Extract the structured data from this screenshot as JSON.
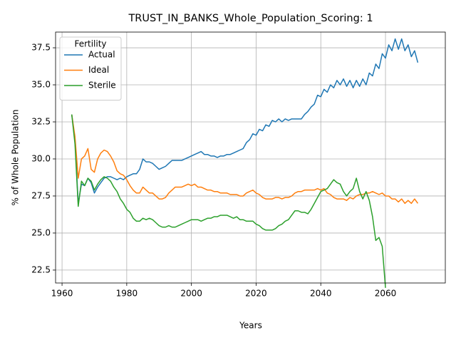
{
  "chart_data": {
    "type": "line",
    "title": "TRUST_IN_BANKS_Whole_Population_Scoring: 1",
    "x_label": "Years",
    "y_label": "% of Whole Population",
    "x": [
      1963,
      1964,
      1965,
      1966,
      1967,
      1968,
      1969,
      1970,
      1971,
      1972,
      1973,
      1974,
      1975,
      1976,
      1977,
      1978,
      1979,
      1980,
      1981,
      1982,
      1983,
      1984,
      1985,
      1986,
      1987,
      1988,
      1989,
      1990,
      1991,
      1992,
      1993,
      1994,
      1995,
      1996,
      1997,
      1998,
      1999,
      2000,
      2001,
      2002,
      2003,
      2004,
      2005,
      2006,
      2007,
      2008,
      2009,
      2010,
      2011,
      2012,
      2013,
      2014,
      2015,
      2016,
      2017,
      2018,
      2019,
      2020,
      2021,
      2022,
      2023,
      2024,
      2025,
      2026,
      2027,
      2028,
      2029,
      2030,
      2031,
      2032,
      2033,
      2034,
      2035,
      2036,
      2037,
      2038,
      2039,
      2040,
      2041,
      2042,
      2043,
      2044,
      2045,
      2046,
      2047,
      2048,
      2049,
      2050,
      2051,
      2052,
      2053,
      2054,
      2055,
      2056,
      2057,
      2058,
      2059,
      2060,
      2061,
      2062,
      2063,
      2064,
      2065,
      2066,
      2067,
      2068,
      2069,
      2070
    ],
    "series": [
      {
        "name": "Actual",
        "color": "#1f77b4",
        "values": [
          33.0,
          31.3,
          27.0,
          28.3,
          28.2,
          28.7,
          28.4,
          27.7,
          28.1,
          28.4,
          28.7,
          28.8,
          28.8,
          28.7,
          28.6,
          28.7,
          28.6,
          28.8,
          28.9,
          29.0,
          29.0,
          29.3,
          30.0,
          29.8,
          29.8,
          29.7,
          29.5,
          29.3,
          29.4,
          29.5,
          29.7,
          29.9,
          29.9,
          29.9,
          29.9,
          30.0,
          30.1,
          30.2,
          30.3,
          30.4,
          30.5,
          30.3,
          30.3,
          30.2,
          30.2,
          30.1,
          30.2,
          30.2,
          30.3,
          30.3,
          30.4,
          30.5,
          30.6,
          30.7,
          31.1,
          31.3,
          31.7,
          31.6,
          32.0,
          31.9,
          32.3,
          32.2,
          32.6,
          32.5,
          32.7,
          32.5,
          32.7,
          32.6,
          32.7,
          32.7,
          32.7,
          32.7,
          33.0,
          33.2,
          33.5,
          33.7,
          34.3,
          34.2,
          34.7,
          34.5,
          35.0,
          34.8,
          35.3,
          35.0,
          35.4,
          34.9,
          35.3,
          34.8,
          35.3,
          34.9,
          35.4,
          35.0,
          35.8,
          35.6,
          36.4,
          36.1,
          37.1,
          36.8,
          37.7,
          37.3,
          38.1,
          37.4,
          38.1,
          37.3,
          37.7,
          36.9,
          37.3,
          36.5
        ]
      },
      {
        "name": "Ideal",
        "color": "#ff7f0e",
        "values": [
          33.0,
          31.5,
          28.7,
          30.0,
          30.2,
          30.7,
          29.3,
          29.1,
          30.0,
          30.4,
          30.6,
          30.5,
          30.2,
          29.8,
          29.2,
          29.0,
          28.9,
          28.6,
          28.2,
          27.9,
          27.7,
          27.7,
          28.1,
          27.9,
          27.7,
          27.7,
          27.5,
          27.3,
          27.3,
          27.4,
          27.7,
          27.9,
          28.1,
          28.1,
          28.1,
          28.2,
          28.3,
          28.2,
          28.3,
          28.1,
          28.1,
          28.0,
          27.9,
          27.9,
          27.8,
          27.8,
          27.7,
          27.7,
          27.7,
          27.6,
          27.6,
          27.6,
          27.5,
          27.5,
          27.7,
          27.8,
          27.9,
          27.7,
          27.6,
          27.4,
          27.3,
          27.3,
          27.3,
          27.4,
          27.4,
          27.3,
          27.4,
          27.4,
          27.5,
          27.7,
          27.8,
          27.8,
          27.9,
          27.9,
          27.9,
          27.9,
          28.0,
          27.9,
          28.0,
          27.7,
          27.6,
          27.4,
          27.3,
          27.3,
          27.3,
          27.2,
          27.4,
          27.3,
          27.5,
          27.6,
          27.6,
          27.7,
          27.7,
          27.8,
          27.7,
          27.6,
          27.7,
          27.5,
          27.5,
          27.3,
          27.3,
          27.1,
          27.3,
          27.0,
          27.2,
          27.0,
          27.3,
          27.0
        ]
      },
      {
        "name": "Sterile",
        "color": "#2ca02c",
        "values": [
          33.0,
          31.0,
          26.8,
          28.5,
          28.2,
          28.7,
          28.5,
          27.9,
          28.3,
          28.6,
          28.8,
          28.7,
          28.5,
          28.1,
          27.8,
          27.3,
          27.0,
          26.6,
          26.4,
          26.0,
          25.8,
          25.8,
          26.0,
          25.9,
          26.0,
          25.9,
          25.7,
          25.5,
          25.4,
          25.4,
          25.5,
          25.4,
          25.4,
          25.5,
          25.6,
          25.7,
          25.8,
          25.9,
          25.9,
          25.9,
          25.8,
          25.9,
          26.0,
          26.0,
          26.1,
          26.1,
          26.2,
          26.2,
          26.2,
          26.1,
          26.0,
          26.1,
          25.9,
          25.9,
          25.8,
          25.8,
          25.8,
          25.6,
          25.5,
          25.3,
          25.2,
          25.2,
          25.2,
          25.3,
          25.5,
          25.6,
          25.8,
          25.9,
          26.2,
          26.5,
          26.5,
          26.4,
          26.4,
          26.3,
          26.6,
          27.0,
          27.4,
          27.8,
          27.9,
          28.0,
          28.3,
          28.6,
          28.4,
          28.3,
          27.8,
          27.5,
          27.8,
          28.0,
          28.7,
          27.8,
          27.3,
          27.8,
          27.2,
          26.1,
          24.5,
          24.7,
          24.1,
          21.3,
          null,
          null,
          null,
          null,
          null,
          null,
          null,
          null,
          null,
          null
        ]
      }
    ],
    "xlim": [
      1958,
      2078.5
    ],
    "ylim": [
      21.63,
      38.56
    ],
    "xticks": [
      1960,
      1980,
      2000,
      2020,
      2040,
      2060
    ],
    "yticks": [
      22.5,
      {
        "value": 25,
        "label": "25.0"
      },
      27.5,
      {
        "value": 30,
        "label": "30.0"
      },
      32.5,
      {
        "value": 35,
        "label": "35.0"
      },
      37.5
    ],
    "grid": true,
    "legend_title": "Fertility",
    "legend_position": "upper left"
  }
}
